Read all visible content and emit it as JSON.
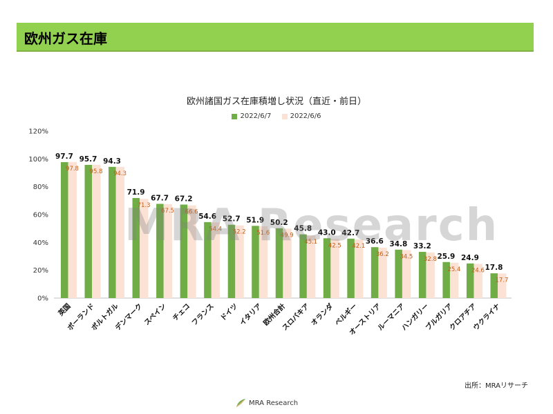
{
  "header": {
    "title": "欧州ガス在庫"
  },
  "watermark": "MRA Research",
  "source": "出所：MRAリサーチ",
  "footer": {
    "brand": "MRA Research"
  },
  "colors": {
    "current": "#70ad47",
    "previous": "#fbe2d5",
    "prev_label": "#c55a11",
    "header": "#92d050"
  },
  "chart_data": {
    "type": "bar",
    "title": "欧州諸国ガス在庫積増し状況（直近・前日）",
    "categories": [
      "英国",
      "ポーランド",
      "ポルトガル",
      "デンマーク",
      "スペイン",
      "チェコ",
      "フランス",
      "ドイツ",
      "イタリア",
      "欧州合計",
      "スロバキア",
      "オランダ",
      "ベルギー",
      "オーストリア",
      "ルーマニア",
      "ハンガリー",
      "ブルガリア",
      "クロアチア",
      "ウクライナ"
    ],
    "series": [
      {
        "name": "2022/6/7",
        "values": [
          97.7,
          95.7,
          94.3,
          71.9,
          67.7,
          67.2,
          54.6,
          52.7,
          51.9,
          50.2,
          45.8,
          43.0,
          42.7,
          36.6,
          34.8,
          33.2,
          25.9,
          24.9,
          17.8
        ]
      },
      {
        "name": "2022/6/6",
        "values": [
          97.8,
          95.8,
          94.3,
          71.3,
          67.5,
          66.6,
          54.4,
          52.2,
          51.6,
          49.9,
          45.1,
          42.5,
          42.1,
          36.2,
          34.5,
          32.8,
          25.4,
          24.6,
          17.7
        ]
      }
    ],
    "ylim": [
      0,
      120
    ],
    "yticks": [
      "0%",
      "20%",
      "40%",
      "60%",
      "80%",
      "100%",
      "120%"
    ],
    "legend_position": "top-center",
    "grid": false
  }
}
